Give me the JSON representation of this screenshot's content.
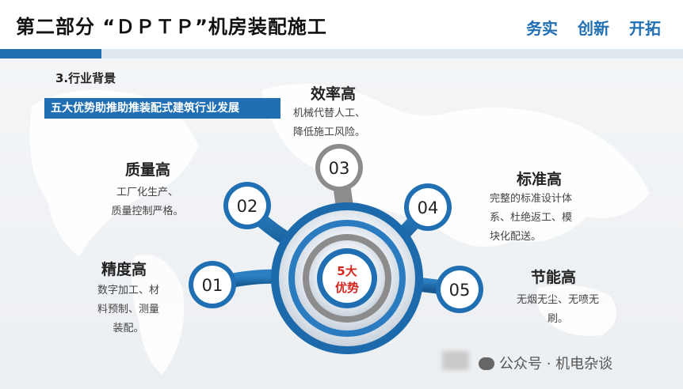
{
  "header": {
    "title": "第二部分 “ＤＰＴＰ”机房装配施工",
    "slogan": "务实 创新 开拓"
  },
  "section": {
    "label": "3.行业背景",
    "subtitle": "五大优势助推助推装配式建筑行业发展"
  },
  "center": {
    "line1": "5大",
    "line2": "优势"
  },
  "advantages": [
    {
      "num": "01",
      "title": "精度高",
      "desc": [
        "数字加工、材",
        "料预制、测量",
        "装配。"
      ]
    },
    {
      "num": "02",
      "title": "质量高",
      "desc": [
        "工厂化生产、",
        "质量控制严格。"
      ]
    },
    {
      "num": "03",
      "title": "效率高",
      "desc": [
        "机械代替人工、",
        "降低施工风险。"
      ]
    },
    {
      "num": "04",
      "title": "标准高",
      "desc": [
        "完整的标准设计体",
        "系、杜绝返工、模",
        "块化配送。"
      ]
    },
    {
      "num": "05",
      "title": "节能高",
      "desc": [
        "无烟无尘、无喷无",
        "刷。"
      ]
    }
  ],
  "watermark": "公众号 · 机电杂谈",
  "colors": {
    "accent": "#1f6fb2",
    "center_text": "#d7261f",
    "grey_node": "#8c8c8c"
  }
}
